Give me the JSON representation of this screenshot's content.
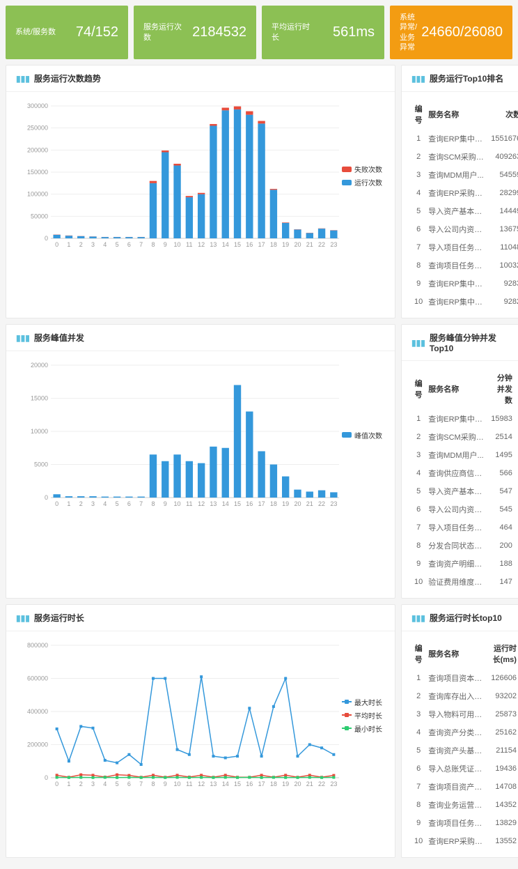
{
  "stats": [
    {
      "label": "系统/服务数",
      "value": "74/152",
      "color": "#8cc054"
    },
    {
      "label": "服务运行次数",
      "value": "2184532",
      "color": "#8cc054"
    },
    {
      "label": "平均运行时长",
      "value": "561ms",
      "color": "#8cc054"
    },
    {
      "label": "系统异常/业务异常",
      "value": "24660/26080",
      "color": "#f39c12"
    }
  ],
  "chart1": {
    "title": "服务运行次数趋势",
    "type": "bar",
    "categories": [
      0,
      1,
      2,
      3,
      4,
      5,
      6,
      7,
      8,
      9,
      10,
      11,
      12,
      13,
      14,
      15,
      16,
      17,
      18,
      19,
      20,
      21,
      22,
      23
    ],
    "ylim": [
      0,
      300000
    ],
    "ytick_step": 50000,
    "series": [
      {
        "name": "失败次数",
        "color": "#e74c3c",
        "data": [
          500,
          500,
          300,
          300,
          200,
          200,
          200,
          200,
          5000,
          4000,
          4000,
          3000,
          3000,
          4000,
          6000,
          7000,
          8000,
          6000,
          2000,
          1000,
          500,
          500,
          500,
          500
        ]
      },
      {
        "name": "运行次数",
        "color": "#3498db",
        "data": [
          8000,
          6000,
          5000,
          4000,
          3000,
          3000,
          3000,
          3000,
          125000,
          195000,
          165000,
          93000,
          100000,
          255000,
          290000,
          292000,
          280000,
          260000,
          110000,
          35000,
          20000,
          12000,
          22000,
          18000
        ]
      }
    ]
  },
  "list1": {
    "title": "服务运行Top10排名",
    "headers": [
      "编号",
      "服务名称",
      "次数"
    ],
    "rows": [
      [
        1,
        "查询ERP集中门...",
        "1551676"
      ],
      [
        2,
        "查询SCM采购日...",
        "409263"
      ],
      [
        3,
        "查询MDM用户...",
        "54559"
      ],
      [
        4,
        "查询ERP采购订...",
        "28299"
      ],
      [
        5,
        "导入资产基本信...",
        "14449"
      ],
      [
        6,
        "导入公司内资产...",
        "13675"
      ],
      [
        7,
        "导入项目任务任...",
        "11048"
      ],
      [
        8,
        "查询项目任务任...",
        "10032"
      ],
      [
        9,
        "查询ERP集中门...",
        "9283"
      ],
      [
        10,
        "查询ERP集中门...",
        "9282"
      ]
    ]
  },
  "chart2": {
    "title": "服务峰值并发",
    "type": "bar",
    "categories": [
      0,
      1,
      2,
      3,
      4,
      5,
      6,
      7,
      8,
      9,
      10,
      11,
      12,
      13,
      14,
      15,
      16,
      17,
      18,
      19,
      20,
      21,
      22,
      23
    ],
    "ylim": [
      0,
      20000
    ],
    "ytick_step": 5000,
    "series": [
      {
        "name": "峰值次数",
        "color": "#3498db",
        "data": [
          500,
          200,
          200,
          200,
          150,
          150,
          150,
          150,
          6500,
          5500,
          6500,
          5500,
          5200,
          7700,
          7500,
          17000,
          13000,
          7000,
          5000,
          3200,
          1200,
          900,
          1100,
          800
        ]
      }
    ]
  },
  "list2": {
    "title": "服务峰值分钟并发Top10",
    "headers": [
      "编号",
      "服务名称",
      "分钟并发数"
    ],
    "rows": [
      [
        1,
        "查询ERP集中门...",
        "15983"
      ],
      [
        2,
        "查询SCM采购日...",
        "2514"
      ],
      [
        3,
        "查询MDM用户...",
        "1495"
      ],
      [
        4,
        "查询供应商信息...",
        "566"
      ],
      [
        5,
        "导入资产基本信...",
        "547"
      ],
      [
        6,
        "导入公司内资产...",
        "545"
      ],
      [
        7,
        "导入项目任务任...",
        "464"
      ],
      [
        8,
        "分发合同状态变...",
        "200"
      ],
      [
        9,
        "查询资产明细信...",
        "188"
      ],
      [
        10,
        "验证费用维度交...",
        "147"
      ]
    ]
  },
  "chart3": {
    "title": "服务运行时长",
    "type": "line",
    "categories": [
      0,
      1,
      2,
      3,
      4,
      5,
      6,
      7,
      8,
      9,
      10,
      11,
      12,
      13,
      14,
      15,
      16,
      17,
      18,
      19,
      20,
      21,
      22,
      23
    ],
    "ylim": [
      0,
      800000
    ],
    "ytick_step": 200000,
    "series": [
      {
        "name": "最大时长",
        "color": "#3498db",
        "data": [
          295000,
          100000,
          310000,
          300000,
          105000,
          90000,
          140000,
          80000,
          600000,
          600000,
          170000,
          140000,
          610000,
          130000,
          120000,
          130000,
          420000,
          130000,
          430000,
          600000,
          130000,
          200000,
          180000,
          140000
        ]
      },
      {
        "name": "平均时长",
        "color": "#e74c3c",
        "data": [
          15000,
          3000,
          18000,
          15000,
          4000,
          18000,
          14000,
          3000,
          15000,
          3000,
          15000,
          4000,
          15000,
          3000,
          15000,
          3000,
          3000,
          15000,
          3000,
          15000,
          3000,
          15000,
          3000,
          14000
        ]
      },
      {
        "name": "最小时长",
        "color": "#2ecc71",
        "data": [
          2000,
          1000,
          2000,
          1000,
          2000,
          1000,
          2000,
          1000,
          2000,
          1000,
          2000,
          1000,
          2000,
          1000,
          2000,
          1000,
          2000,
          1000,
          2000,
          1000,
          1000,
          2000,
          1000,
          2000
        ]
      }
    ]
  },
  "list3": {
    "title": "服务运行时长top10",
    "headers": [
      "编号",
      "服务名称",
      "运行时长(ms)"
    ],
    "rows": [
      [
        1,
        "查询项目资本开...",
        "126606"
      ],
      [
        2,
        "查询库存出入库...",
        "93202"
      ],
      [
        3,
        "导入物料可用资...",
        "25873"
      ],
      [
        4,
        "查询资产分类行...",
        "25162"
      ],
      [
        5,
        "查询资产头基本...",
        "21154"
      ],
      [
        6,
        "导入总账凭证信...",
        "19436"
      ],
      [
        7,
        "查询项目资产信...",
        "14708"
      ],
      [
        8,
        "查询业务运营信...",
        "14352"
      ],
      [
        9,
        "查询项目任务信...",
        "13829"
      ],
      [
        10,
        "查询ERP采购订...",
        "13552"
      ]
    ]
  }
}
